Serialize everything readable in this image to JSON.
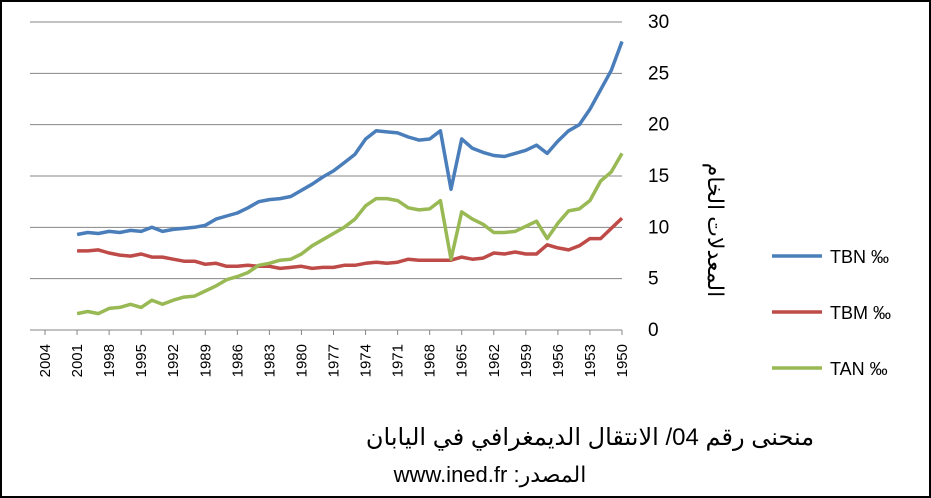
{
  "chart_data": {
    "type": "line",
    "title": "منحنى رقم 04/ الانتقال الديمغرافي في اليابان",
    "subtitle": "المصدر: www.ined.fr",
    "y_label": "المعدلات الخام",
    "x": [
      1950,
      1951,
      1952,
      1953,
      1954,
      1955,
      1956,
      1957,
      1958,
      1959,
      1960,
      1961,
      1962,
      1963,
      1964,
      1965,
      1966,
      1967,
      1968,
      1969,
      1970,
      1971,
      1972,
      1973,
      1974,
      1975,
      1976,
      1977,
      1978,
      1979,
      1980,
      1981,
      1982,
      1983,
      1984,
      1985,
      1986,
      1987,
      1988,
      1989,
      1990,
      1991,
      1992,
      1993,
      1994,
      1995,
      1996,
      1997,
      1998,
      1999,
      2000,
      2001
    ],
    "series": [
      {
        "name": "TBN ‰",
        "color": "#4a7ebb",
        "values": [
          28.1,
          25.3,
          23.4,
          21.5,
          20.0,
          19.4,
          18.4,
          17.2,
          18.0,
          17.5,
          17.2,
          16.9,
          17.0,
          17.3,
          17.7,
          18.6,
          13.7,
          19.4,
          18.6,
          18.5,
          18.8,
          19.2,
          19.3,
          19.4,
          18.6,
          17.1,
          16.3,
          15.5,
          14.9,
          14.2,
          13.6,
          13.0,
          12.8,
          12.7,
          12.5,
          11.9,
          11.4,
          11.1,
          10.8,
          10.2,
          10.0,
          9.9,
          9.8,
          9.6,
          10.0,
          9.6,
          9.7,
          9.5,
          9.6,
          9.4,
          9.5,
          9.3
        ]
      },
      {
        "name": "TBM ‰",
        "color": "#be4b48",
        "values": [
          10.9,
          9.9,
          8.9,
          8.9,
          8.2,
          7.8,
          8.0,
          8.3,
          7.4,
          7.4,
          7.6,
          7.4,
          7.5,
          7.0,
          6.9,
          7.1,
          6.8,
          6.8,
          6.8,
          6.8,
          6.9,
          6.6,
          6.5,
          6.6,
          6.5,
          6.3,
          6.3,
          6.1,
          6.1,
          6.0,
          6.2,
          6.1,
          6.0,
          6.2,
          6.2,
          6.3,
          6.2,
          6.2,
          6.5,
          6.4,
          6.7,
          6.7,
          6.9,
          7.1,
          7.1,
          7.4,
          7.2,
          7.3,
          7.5,
          7.8,
          7.7,
          7.7
        ]
      },
      {
        "name": "TAN ‰",
        "color": "#98b954",
        "values": [
          17.2,
          15.4,
          14.5,
          12.6,
          11.8,
          11.6,
          10.4,
          8.9,
          10.6,
          10.1,
          9.6,
          9.5,
          9.5,
          10.3,
          10.8,
          11.5,
          6.9,
          12.6,
          11.8,
          11.7,
          11.9,
          12.6,
          12.8,
          12.8,
          12.1,
          10.8,
          10.0,
          9.4,
          8.8,
          8.2,
          7.4,
          6.9,
          6.8,
          6.5,
          6.3,
          5.6,
          5.2,
          4.9,
          4.3,
          3.8,
          3.3,
          3.2,
          2.9,
          2.5,
          2.9,
          2.2,
          2.5,
          2.2,
          2.1,
          1.6,
          1.8,
          1.6
        ]
      }
    ],
    "xlim": [
      2004,
      1950
    ],
    "xticks": [
      2004,
      2001,
      1998,
      1995,
      1992,
      1989,
      1986,
      1983,
      1980,
      1977,
      1974,
      1971,
      1968,
      1965,
      1962,
      1959,
      1956,
      1953,
      1950
    ],
    "ylim": [
      0,
      30
    ],
    "yticks": [
      0,
      5,
      10,
      15,
      20,
      25,
      30
    ],
    "grid": true,
    "legend": "right"
  }
}
